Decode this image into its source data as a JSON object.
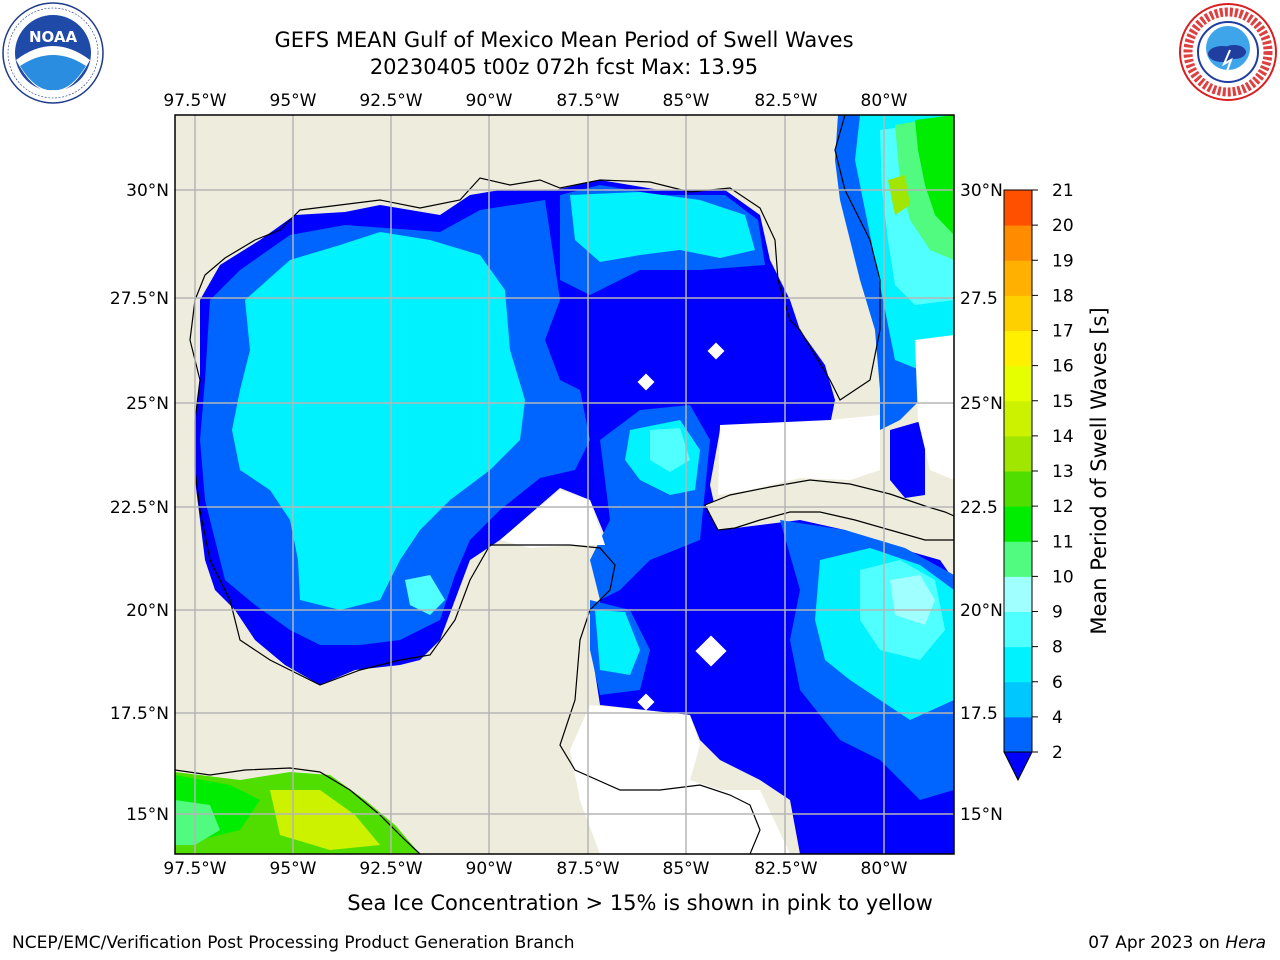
{
  "header": {
    "title_line1": "GEFS MEAN Gulf of Mexico Mean Period of Swell Waves",
    "title_line2": "20230405 t00z 072h fcst   Max: 13.95"
  },
  "logos": {
    "left": "noaa-logo",
    "right": "national-weather-service-logo"
  },
  "map": {
    "lon_labels": [
      "97.5°W",
      "95°W",
      "92.5°W",
      "90°W",
      "87.5°W",
      "85°W",
      "82.5°W",
      "80°W"
    ],
    "lat_labels": [
      "30°N",
      "27.5°N",
      "25°N",
      "22.5°N",
      "20°N",
      "17.5°N",
      "15°N"
    ],
    "lat_labels_right": [
      "30°N",
      "27.5",
      "25°N",
      "22.5",
      "20°N",
      "17.5",
      "15°N"
    ],
    "colors": {
      "land": "#eeeddd",
      "grid": "#b5b5b5",
      "coast": "#000000"
    }
  },
  "colorbar": {
    "label": "Mean Period of Swell Waves [s]",
    "ticks": [
      "2",
      "4",
      "6",
      "8",
      "9",
      "10",
      "11",
      "12",
      "13",
      "14",
      "15",
      "16",
      "17",
      "18",
      "19",
      "20",
      "21"
    ],
    "colors": [
      "#0064ff",
      "#00c8ff",
      "#00f2ff",
      "#50ffff",
      "#a0ffff",
      "#50fb80",
      "#00ec00",
      "#4fde00",
      "#a0e600",
      "#ccf200",
      "#e6ff00",
      "#fff000",
      "#ffd000",
      "#ffb000",
      "#ff8c00",
      "#ff5000",
      "#ff2000",
      "#ff0000"
    ],
    "under_color": "#0000ff"
  },
  "caption": "Sea Ice Concentration > 15% is shown in pink to yellow",
  "footer": {
    "left": "NCEP/EMC/Verification Post Processing Product Generation Branch",
    "date": "07 Apr 2023 on ",
    "host": "Hera"
  }
}
